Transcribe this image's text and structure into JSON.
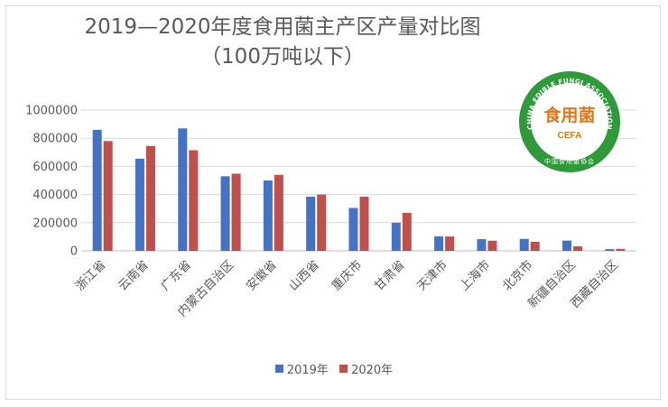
{
  "title_line1": "2019—2020年度食用菌主产区产量对比图",
  "title_line2": "（100万吨以下）",
  "logo": {
    "ring_text": "CHINA EDIBLE FUNGI ASSOCIATION",
    "center_glyphs": "食用菌",
    "acronym": "CEFA",
    "bottom_text": "中国食用菌协会",
    "ring_color": "#2e9a3a",
    "glyph_color": "#e0781e"
  },
  "colors": {
    "s2019": "#4472c4",
    "s2020": "#c0504d",
    "axis_text": "#595959",
    "grid": "#d9d9d9"
  },
  "chart_data": {
    "type": "bar",
    "categories": [
      "浙江省",
      "云南省",
      "广东省",
      "内蒙古自治区",
      "安徽省",
      "山西省",
      "重庆市",
      "甘肃省",
      "天津市",
      "上海市",
      "北京市",
      "新疆自治区",
      "西藏自治区"
    ],
    "series": [
      {
        "name": "2019年",
        "values": [
          860000,
          655000,
          870000,
          530000,
          500000,
          385000,
          305000,
          200000,
          103000,
          83000,
          85000,
          73000,
          12000
        ]
      },
      {
        "name": "2020年",
        "values": [
          780000,
          745000,
          715000,
          548000,
          540000,
          400000,
          385000,
          270000,
          102000,
          72000,
          65000,
          32000,
          14000
        ]
      }
    ],
    "ylim": [
      0,
      1000000
    ],
    "yticks": [
      0,
      200000,
      400000,
      600000,
      800000,
      1000000
    ],
    "ytick_labels": [
      "0",
      "200000",
      "400000",
      "600000",
      "800000",
      "1000000"
    ],
    "grid": true,
    "legend_position": "bottom"
  }
}
